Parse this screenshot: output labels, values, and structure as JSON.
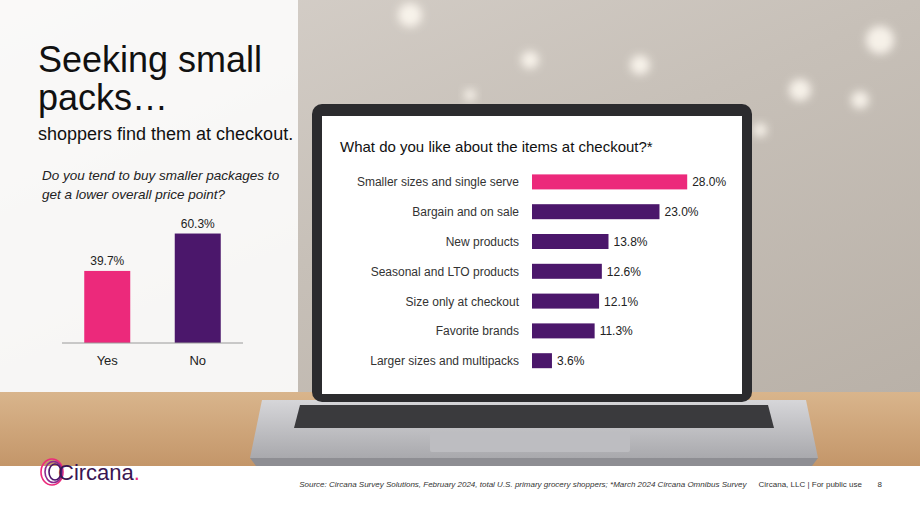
{
  "page": {
    "title": "Seeking small packs…",
    "subtitle": "shoppers find them at checkout.",
    "logo": "Circana.",
    "source": "Source: Circana Survey Solutions, February 2024, total U.S. primary grocery shoppers;  *March 2024 Circana Omnibus Survey",
    "footer": "Circana, LLC | For public use",
    "page_number": 8
  },
  "chart_data": [
    {
      "type": "bar",
      "title": "Do you tend to buy smaller packages to get a lower overall price point?",
      "categories": [
        "Yes",
        "No"
      ],
      "values": [
        39.7,
        60.3
      ],
      "value_labels": [
        "39.7%",
        "60.3%"
      ],
      "colors": [
        "#ec297b",
        "#4b176b"
      ],
      "ylim": [
        0,
        65
      ],
      "data_labels": true,
      "tick_labels": "x",
      "grid": false
    },
    {
      "type": "bar",
      "orientation": "horizontal",
      "title": "What do you like about the items at checkout?*",
      "categories": [
        "Smaller sizes and single serve",
        "Bargain and on sale",
        "New products",
        "Seasonal and LTO products",
        "Size only at checkout",
        "Favorite brands",
        "Larger sizes and multipacks"
      ],
      "values": [
        28.0,
        23.0,
        13.8,
        12.6,
        12.1,
        11.3,
        3.6
      ],
      "value_labels": [
        "28.0%",
        "23.0%",
        "13.8%",
        "12.6%",
        "12.1%",
        "11.3%",
        "3.6%"
      ],
      "colors": [
        "#ec297b",
        "#4b176b",
        "#4b176b",
        "#4b176b",
        "#4b176b",
        "#4b176b",
        "#4b176b"
      ],
      "xlim": [
        0,
        35
      ],
      "data_labels": true,
      "tick_labels": "y",
      "grid": false
    }
  ]
}
